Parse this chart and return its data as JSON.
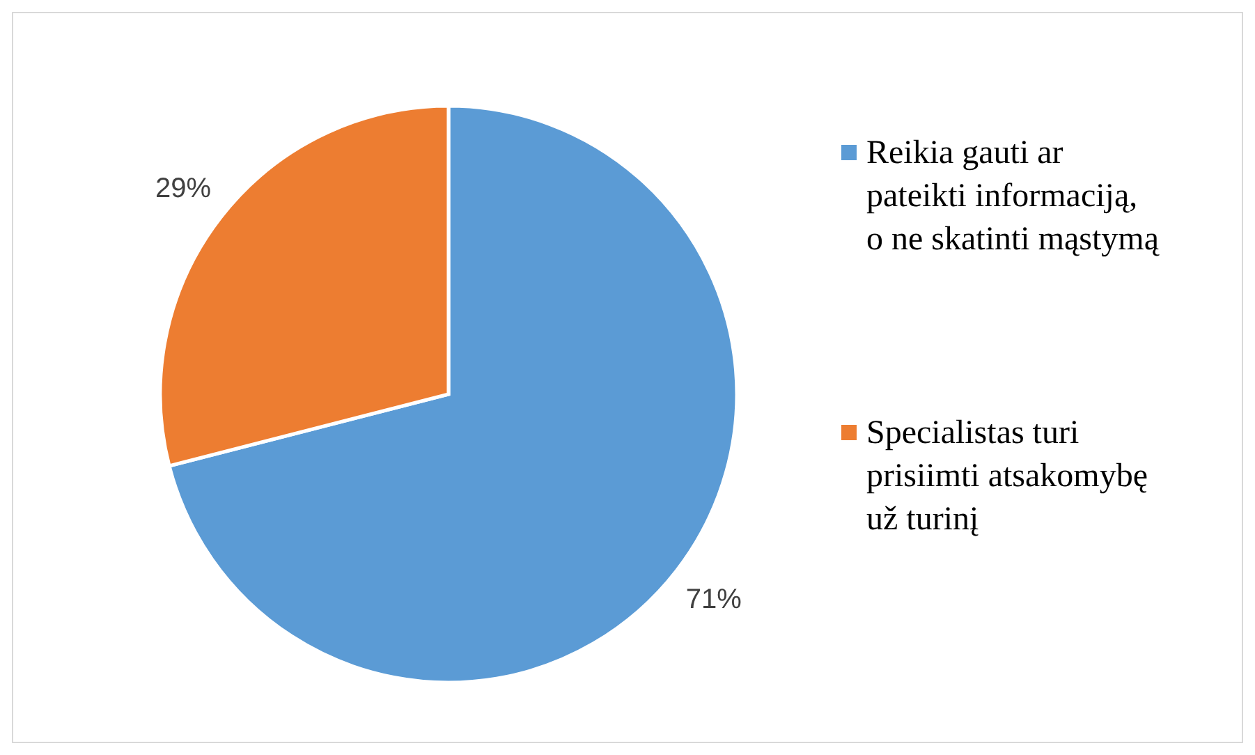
{
  "chart_data": {
    "type": "pie",
    "categories": [
      "Reikia gauti ar pateikti informaciją, o ne skatinti mąstymą",
      "Specialistas turi prisiimti atsakomybę už turinį"
    ],
    "values": [
      71,
      29
    ],
    "colors": [
      "#5b9bd5",
      "#ed7d31"
    ],
    "value_labels": [
      "71%",
      "29%"
    ],
    "legend": "right"
  }
}
